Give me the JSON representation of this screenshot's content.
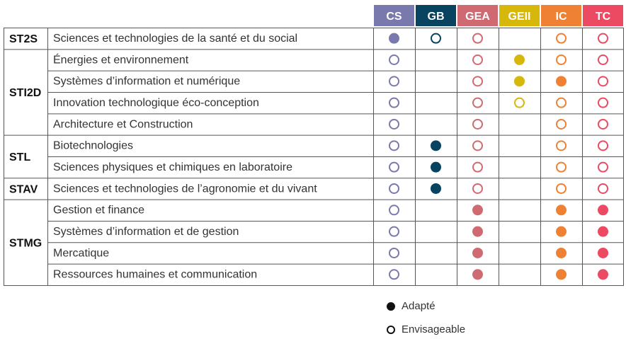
{
  "columns": [
    {
      "key": "CS",
      "label": "CS",
      "bg": "#7a79ad",
      "fg": "#ffffff",
      "color": "#7a79ad"
    },
    {
      "key": "GB",
      "label": "GB",
      "bg": "#08435f",
      "fg": "#ffffff",
      "color": "#08435f"
    },
    {
      "key": "GEA",
      "label": "GEA",
      "bg": "#d06a72",
      "fg": "#ffffff",
      "color": "#d06a72"
    },
    {
      "key": "GEII",
      "label": "GEII",
      "bg": "#d7b70a",
      "fg": "#ffffff",
      "color": "#d7b70a"
    },
    {
      "key": "IC",
      "label": "IC",
      "bg": "#ee8133",
      "fg": "#ffffff",
      "color": "#ee8133"
    },
    {
      "key": "TC",
      "label": "TC",
      "bg": "#ec4a63",
      "fg": "#ffffff",
      "color": "#ec4a63"
    }
  ],
  "groups": [
    {
      "label": "ST2S",
      "rows": [
        {
          "label": "Sciences et technologies de la santé et du social",
          "marks": [
            "A",
            "E",
            "E",
            "",
            "E",
            "E"
          ]
        }
      ]
    },
    {
      "label": "STI2D",
      "rows": [
        {
          "label": "Énergies et environnement",
          "marks": [
            "E",
            "",
            "E",
            "A",
            "E",
            "E"
          ]
        },
        {
          "label": "Systèmes d’information et numérique",
          "marks": [
            "E",
            "",
            "E",
            "A",
            "A",
            "E"
          ]
        },
        {
          "label": "Innovation technologique éco-conception",
          "marks": [
            "E",
            "",
            "E",
            "E",
            "E",
            "E"
          ]
        },
        {
          "label": "Architecture et Construction",
          "marks": [
            "E",
            "",
            "E",
            "",
            "E",
            "E"
          ]
        }
      ]
    },
    {
      "label": "STL",
      "rows": [
        {
          "label": "Biotechnologies",
          "marks": [
            "E",
            "A",
            "E",
            "",
            "E",
            "E"
          ]
        },
        {
          "label": "Sciences physiques et chimiques en laboratoire",
          "marks": [
            "E",
            "A",
            "E",
            "",
            "E",
            "E"
          ]
        }
      ]
    },
    {
      "label": "STAV",
      "rows": [
        {
          "label": "Sciences et technologies de l’agronomie et du vivant",
          "marks": [
            "E",
            "A",
            "E",
            "",
            "E",
            "E"
          ]
        }
      ]
    },
    {
      "label": "STMG",
      "rows": [
        {
          "label": "Gestion et finance",
          "marks": [
            "E",
            "",
            "A",
            "",
            "A",
            "A"
          ]
        },
        {
          "label": "Systèmes d’information et de gestion",
          "marks": [
            "E",
            "",
            "A",
            "",
            "A",
            "A"
          ]
        },
        {
          "label": "Mercatique",
          "marks": [
            "E",
            "",
            "A",
            "",
            "A",
            "A"
          ]
        },
        {
          "label": "Ressources humaines et communication",
          "marks": [
            "E",
            "",
            "A",
            "",
            "A",
            "A"
          ]
        }
      ]
    }
  ],
  "legend": {
    "adapte": "Adapté",
    "envisageable": "Envisageable"
  }
}
